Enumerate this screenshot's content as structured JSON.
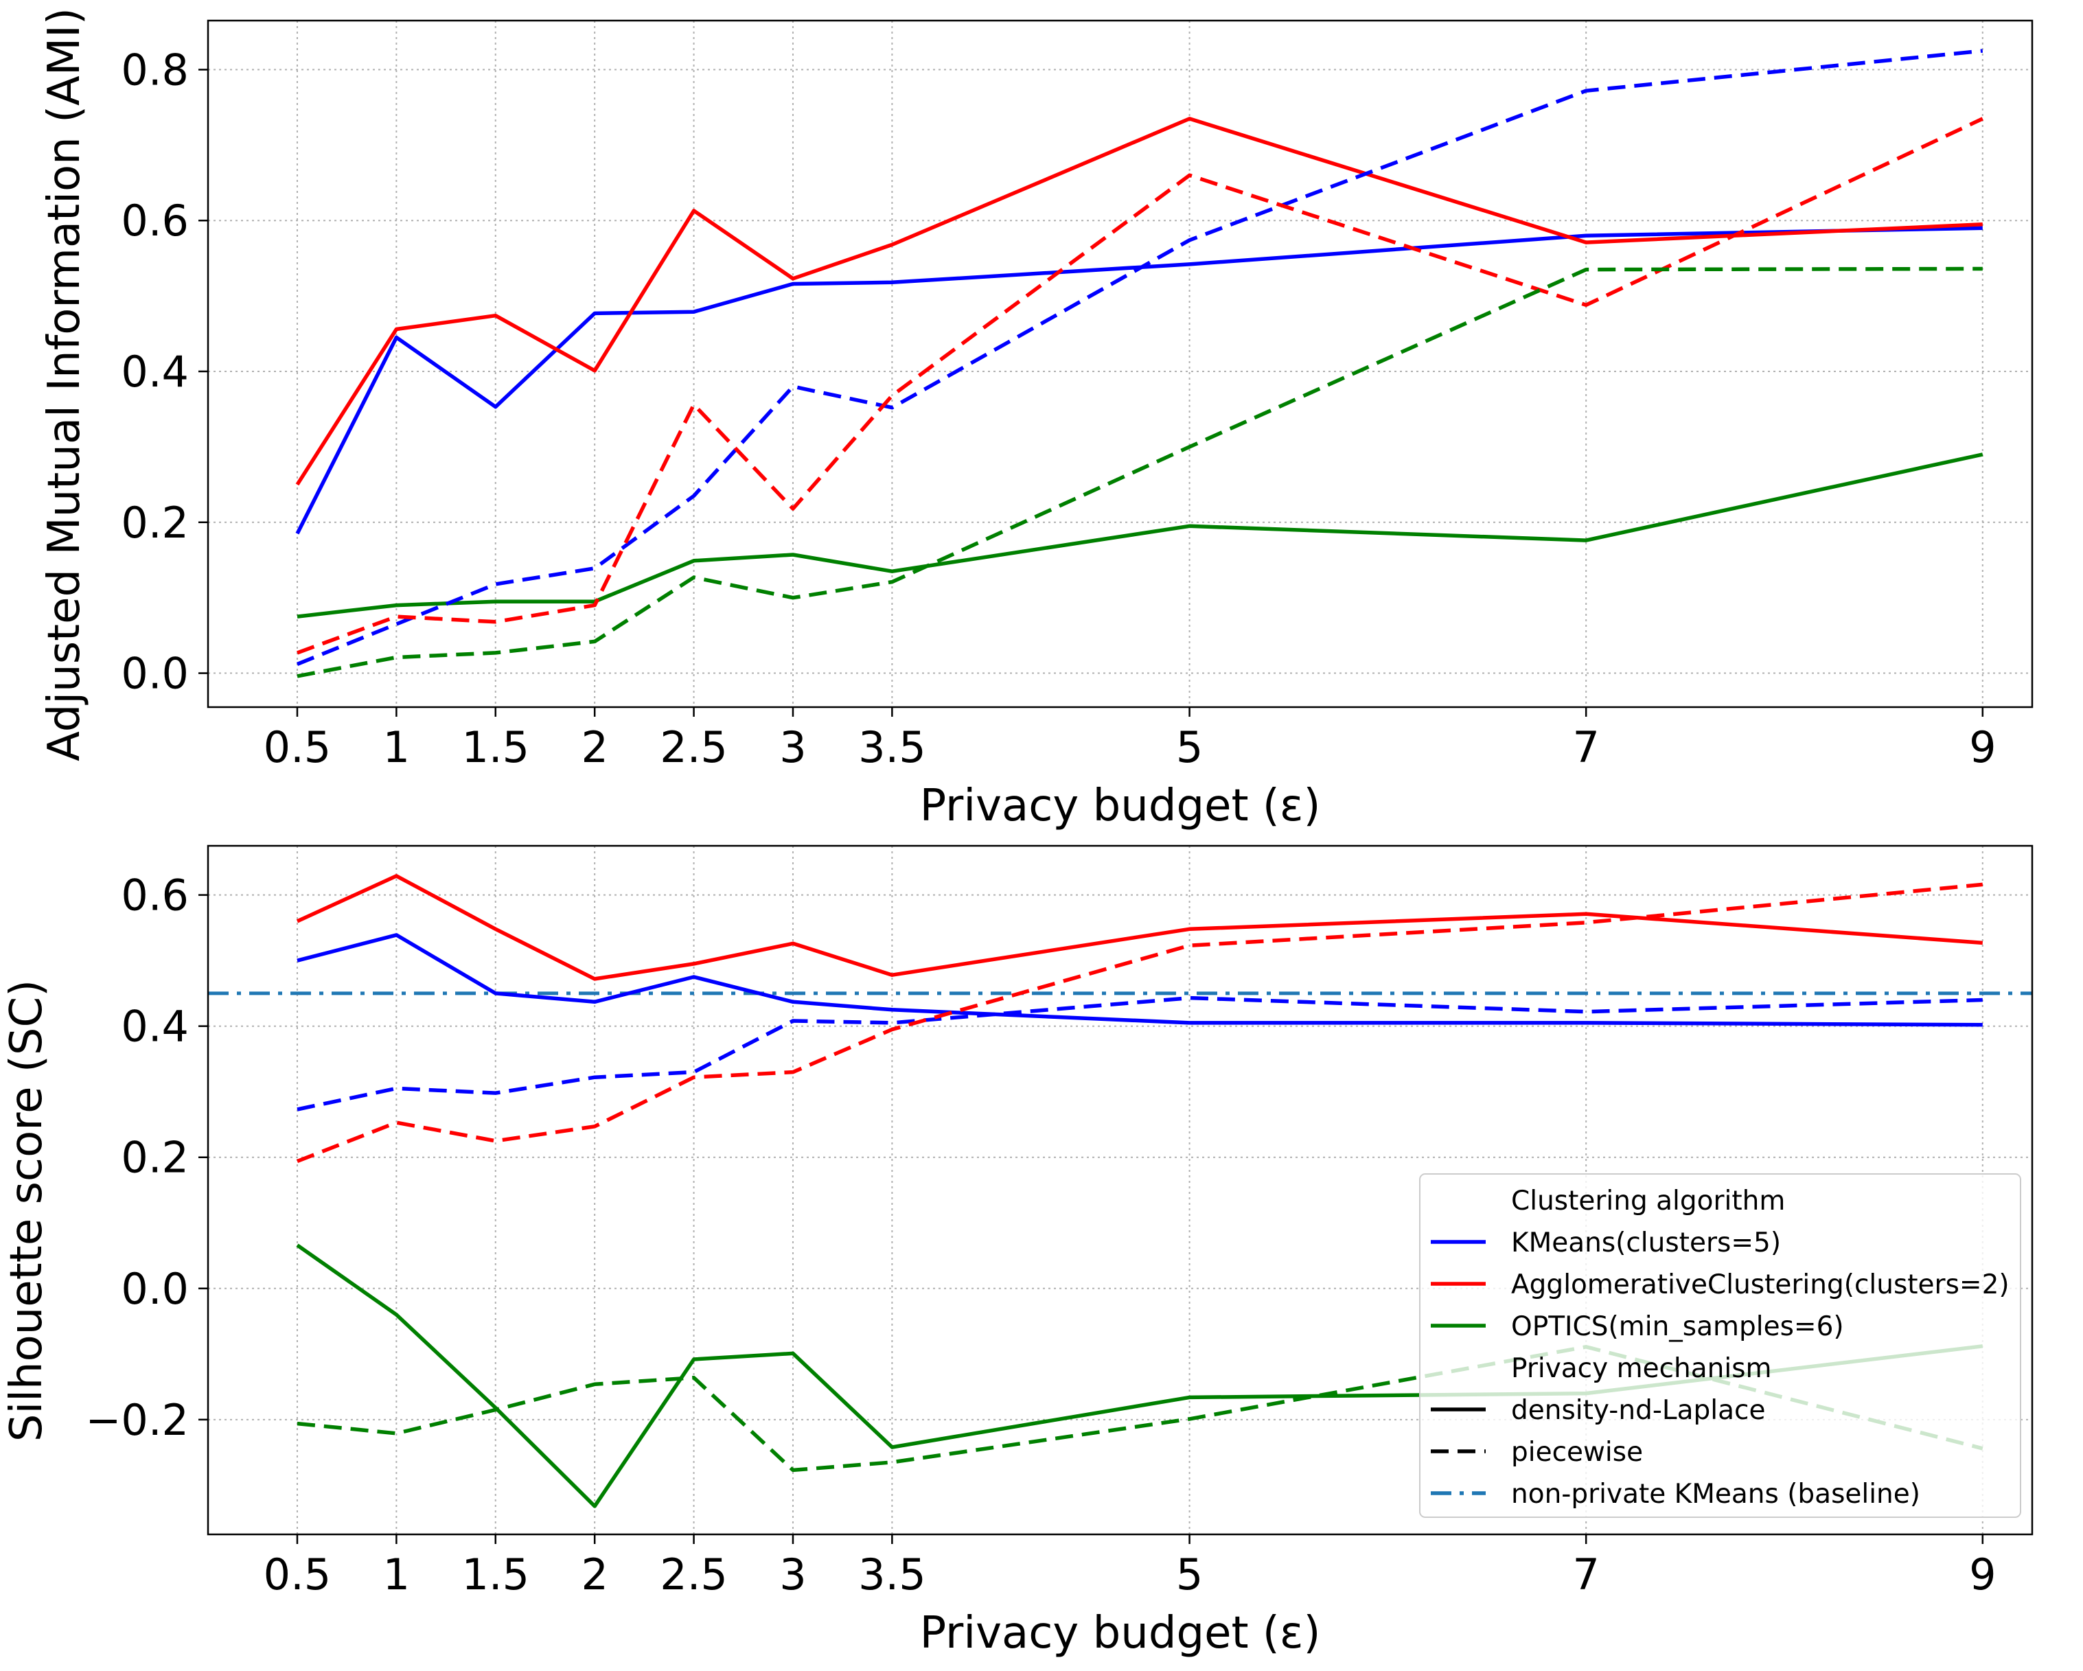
{
  "chart_data": [
    {
      "type": "line",
      "xlabel": "Privacy budget (ε)",
      "ylabel": "Adjusted Mutual Information (AMI)",
      "x": [
        0.5,
        1,
        1.5,
        2,
        2.5,
        3,
        3.5,
        5,
        7,
        9
      ],
      "xticks": [
        "0.5",
        "1",
        "1.5",
        "2",
        "2.5",
        "3",
        "3.5",
        "5",
        "7",
        "9"
      ],
      "yticks": [
        "0.0",
        "0.2",
        "0.4",
        "0.6",
        "0.8"
      ],
      "xlim": [
        0.05,
        9.25
      ],
      "ylim": [
        -0.045,
        0.865
      ],
      "grid": true,
      "series": [
        {
          "algorithm": "KMeans(clusters=5)",
          "mechanism": "density-nd-Laplace",
          "color": "#0000ff",
          "linestyle": "solid",
          "values": [
            0.185,
            0.445,
            0.353,
            0.477,
            0.479,
            0.516,
            0.518,
            0.542,
            0.58,
            0.59
          ]
        },
        {
          "algorithm": "AgglomerativeClustering(clusters=2)",
          "mechanism": "density-nd-Laplace",
          "color": "#ff0000",
          "linestyle": "solid",
          "values": [
            0.25,
            0.456,
            0.474,
            0.401,
            0.613,
            0.523,
            0.568,
            0.735,
            0.571,
            0.595
          ]
        },
        {
          "algorithm": "OPTICS(min_samples=6)",
          "mechanism": "density-nd-Laplace",
          "color": "#008000",
          "linestyle": "solid",
          "values": [
            0.075,
            0.09,
            0.095,
            0.095,
            0.149,
            0.157,
            0.135,
            0.195,
            0.176,
            0.29
          ]
        },
        {
          "algorithm": "KMeans(clusters=5)",
          "mechanism": "piecewise",
          "color": "#0000ff",
          "linestyle": "dashed",
          "values": [
            0.012,
            0.065,
            0.118,
            0.139,
            0.235,
            0.38,
            0.352,
            0.574,
            0.772,
            0.825
          ]
        },
        {
          "algorithm": "AgglomerativeClustering(clusters=2)",
          "mechanism": "piecewise",
          "color": "#ff0000",
          "linestyle": "dashed",
          "values": [
            0.027,
            0.075,
            0.068,
            0.09,
            0.356,
            0.218,
            0.368,
            0.66,
            0.488,
            0.735
          ]
        },
        {
          "algorithm": "OPTICS(min_samples=6)",
          "mechanism": "piecewise",
          "color": "#008000",
          "linestyle": "dashed",
          "values": [
            -0.004,
            0.021,
            0.027,
            0.042,
            0.127,
            0.1,
            0.121,
            0.3,
            0.535,
            0.536
          ]
        }
      ]
    },
    {
      "type": "line",
      "xlabel": "Privacy budget (ε)",
      "ylabel": "Silhouette score (SC)",
      "x": [
        0.5,
        1,
        1.5,
        2,
        2.5,
        3,
        3.5,
        5,
        7,
        9
      ],
      "xticks": [
        "0.5",
        "1",
        "1.5",
        "2",
        "2.5",
        "3",
        "3.5",
        "5",
        "7",
        "9"
      ],
      "yticks": [
        "−0.2",
        "0.0",
        "0.2",
        "0.4",
        "0.6"
      ],
      "xlim": [
        0.05,
        9.25
      ],
      "ylim": [
        -0.375,
        0.675
      ],
      "grid": true,
      "series": [
        {
          "algorithm": "KMeans(clusters=5)",
          "mechanism": "density-nd-Laplace",
          "color": "#0000ff",
          "linestyle": "solid",
          "values": [
            0.5,
            0.539,
            0.45,
            0.437,
            0.475,
            0.437,
            0.425,
            0.405,
            0.405,
            0.402
          ]
        },
        {
          "algorithm": "AgglomerativeClustering(clusters=2)",
          "mechanism": "density-nd-Laplace",
          "color": "#ff0000",
          "linestyle": "solid",
          "values": [
            0.56,
            0.629,
            0.548,
            0.472,
            0.495,
            0.526,
            0.478,
            0.548,
            0.571,
            0.527
          ]
        },
        {
          "algorithm": "OPTICS(min_samples=6)",
          "mechanism": "density-nd-Laplace",
          "color": "#008000",
          "linestyle": "solid",
          "values": [
            0.066,
            -0.04,
            -0.182,
            -0.332,
            -0.108,
            -0.099,
            -0.242,
            -0.166,
            -0.16,
            -0.088
          ]
        },
        {
          "algorithm": "KMeans(clusters=5)",
          "mechanism": "piecewise",
          "color": "#0000ff",
          "linestyle": "dashed",
          "values": [
            0.273,
            0.305,
            0.298,
            0.322,
            0.33,
            0.408,
            0.405,
            0.443,
            0.422,
            0.44
          ]
        },
        {
          "algorithm": "AgglomerativeClustering(clusters=2)",
          "mechanism": "piecewise",
          "color": "#ff0000",
          "linestyle": "dashed",
          "values": [
            0.194,
            0.253,
            0.225,
            0.247,
            0.322,
            0.33,
            0.395,
            0.523,
            0.558,
            0.616
          ]
        },
        {
          "algorithm": "OPTICS(min_samples=6)",
          "mechanism": "piecewise",
          "color": "#008000",
          "linestyle": "dashed",
          "values": [
            -0.206,
            -0.221,
            -0.185,
            -0.146,
            -0.136,
            -0.277,
            -0.265,
            -0.199,
            -0.089,
            -0.244
          ]
        }
      ],
      "baseline": {
        "label": "non-private KMeans (baseline)",
        "value": 0.45,
        "color": "#1f77b4",
        "linestyle": "dashdot"
      },
      "legend": {
        "placement": "lower-right",
        "items": [
          {
            "label": "Clustering algorithm",
            "kind": "header"
          },
          {
            "label": "KMeans(clusters=5)",
            "color": "#0000ff",
            "linestyle": "solid"
          },
          {
            "label": "AgglomerativeClustering(clusters=2)",
            "color": "#ff0000",
            "linestyle": "solid"
          },
          {
            "label": "OPTICS(min_samples=6)",
            "color": "#008000",
            "linestyle": "solid"
          },
          {
            "label": "Privacy mechanism",
            "kind": "header"
          },
          {
            "label": "density-nd-Laplace",
            "color": "#000000",
            "linestyle": "solid"
          },
          {
            "label": "piecewise",
            "color": "#000000",
            "linestyle": "dashed"
          },
          {
            "label": "non-private KMeans (baseline)",
            "color": "#1f77b4",
            "linestyle": "dashdot"
          }
        ]
      }
    }
  ]
}
